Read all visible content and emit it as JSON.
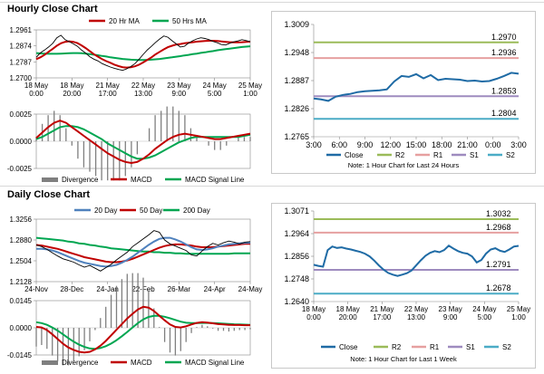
{
  "page": {
    "section1_title": "Hourly Close Chart",
    "section2_title": "Daily Close Chart"
  },
  "colors": {
    "price": "#000000",
    "ma_short": "#c00000",
    "ma_mid": "#4f81bd",
    "ma_long": "#00a651",
    "macd": "#c00000",
    "signal": "#00a651",
    "divergence": "#7f7f7f",
    "close_line": "#1f6ba5",
    "r2": "#9bbb59",
    "r1": "#e6a0a0",
    "s1": "#9e8bbf",
    "s2": "#4bacc6"
  },
  "chart_data": [
    {
      "id": "hourly_price",
      "type": "line",
      "legend": [
        "20 Hr MA",
        "50 Hrs MA"
      ],
      "yticks": [
        "1.2961",
        "1.2874",
        "1.2787",
        "1.2700"
      ],
      "ylim": [
        1.27,
        1.2961
      ],
      "xticks": [
        [
          "18 May",
          "0:00"
        ],
        [
          "18 May",
          "20:00"
        ],
        [
          "21 May",
          "17:00"
        ],
        [
          "22 May",
          "13:00"
        ],
        [
          "23 May",
          "9:00"
        ],
        [
          "24 May",
          "5:00"
        ],
        [
          "25 May",
          "1:00"
        ]
      ],
      "close": [
        1.2812,
        1.2836,
        1.2851,
        1.2868,
        1.2888,
        1.2918,
        1.2932,
        1.2908,
        1.2897,
        1.2885,
        1.2872,
        1.2851,
        1.2835,
        1.2815,
        1.2802,
        1.2792,
        1.2778,
        1.2768,
        1.2759,
        1.2752,
        1.2746,
        1.2741,
        1.2749,
        1.2762,
        1.2778,
        1.2802,
        1.2828,
        1.2852,
        1.2872,
        1.2893,
        1.2912,
        1.2928,
        1.2921,
        1.2902,
        1.2885,
        1.2868,
        1.2872,
        1.2889,
        1.2902,
        1.2912,
        1.2918,
        1.2914,
        1.2908,
        1.2898,
        1.2891,
        1.2881,
        1.2879,
        1.2888,
        1.2896,
        1.2901,
        1.2908,
        1.2903,
        1.2897
      ],
      "ma20": [
        1.2802,
        1.2812,
        1.2825,
        1.2842,
        1.2858,
        1.2875,
        1.2888,
        1.2896,
        1.2899,
        1.2896,
        1.2889,
        1.2877,
        1.2862,
        1.2846,
        1.2829,
        1.2815,
        1.2802,
        1.2791,
        1.2782,
        1.2772,
        1.2764,
        1.2758,
        1.2756,
        1.2758,
        1.2763,
        1.2772,
        1.2784,
        1.2798,
        1.2812,
        1.2828,
        1.2842,
        1.2855,
        1.2867,
        1.2875,
        1.2881,
        1.2884,
        1.2888,
        1.2891,
        1.2894,
        1.2897,
        1.2899,
        1.2901,
        1.2902,
        1.2902,
        1.2901,
        1.2898,
        1.2896,
        1.2894,
        1.2893,
        1.2893,
        1.2894,
        1.2896,
        1.2897
      ],
      "ma50": [
        1.2835,
        1.2833,
        1.2832,
        1.2831,
        1.2831,
        1.2831,
        1.2832,
        1.2833,
        1.2834,
        1.2835,
        1.2835,
        1.2834,
        1.2832,
        1.2829,
        1.2826,
        1.2823,
        1.2819,
        1.2816,
        1.2812,
        1.2809,
        1.2806,
        1.2803,
        1.2801,
        1.2799,
        1.2798,
        1.2797,
        1.2797,
        1.2798,
        1.2799,
        1.2801,
        1.2803,
        1.2806,
        1.2809,
        1.2812,
        1.2815,
        1.2818,
        1.2822,
        1.2825,
        1.2829,
        1.2832,
        1.2836,
        1.2839,
        1.2843,
        1.2846,
        1.285,
        1.2853,
        1.2856,
        1.2859,
        1.2862,
        1.2865,
        1.2868,
        1.287,
        1.2872
      ]
    },
    {
      "id": "hourly_macd",
      "type": "line",
      "legend": [
        "Divergence",
        "MACD",
        "MACD Signal Line"
      ],
      "yticks": [
        "0.0025",
        "0.0000",
        "-0.0025"
      ],
      "ylim": [
        -0.0025,
        0.0025
      ],
      "macd": [
        0.0003,
        0.0008,
        0.0013,
        0.0017,
        0.0019,
        0.0017,
        0.0013,
        0.0009,
        0.0005,
        0.0001,
        -0.0003,
        -0.0007,
        -0.0011,
        -0.0014,
        -0.0017,
        -0.0019,
        -0.002,
        -0.0019,
        -0.0016,
        -0.0012,
        -0.0007,
        -0.0003,
        0.0001,
        0.0004,
        0.0006,
        0.0007,
        0.0006,
        0.0005,
        0.0004,
        0.0003,
        0.0002,
        0.0002,
        0.0003,
        0.0004,
        0.0005,
        0.0006,
        0.0007
      ],
      "signal": [
        0.0002,
        0.0004,
        0.0007,
        0.001,
        0.0013,
        0.0014,
        0.0014,
        0.0013,
        0.0011,
        0.0008,
        0.0005,
        0.0002,
        -0.0002,
        -0.0005,
        -0.0008,
        -0.0011,
        -0.0014,
        -0.0016,
        -0.0016,
        -0.0015,
        -0.0013,
        -0.001,
        -0.0007,
        -0.0004,
        -0.0001,
        0.0001,
        0.0003,
        0.0004,
        0.0004,
        0.0004,
        0.0004,
        0.0004,
        0.0004,
        0.0004,
        0.0004,
        0.0005,
        0.0006
      ]
    },
    {
      "id": "hourly_pivots",
      "type": "line",
      "yticks": [
        "1.3009",
        "1.2948",
        "1.2887",
        "1.2826",
        "1.2765"
      ],
      "ylim": [
        1.2765,
        1.3009
      ],
      "xticks": [
        "3:00",
        "6:00",
        "9:00",
        "12:00",
        "15:00",
        "18:00",
        "21:00",
        "0:00",
        "3:00"
      ],
      "close": [
        1.2848,
        1.2846,
        1.2843,
        1.2852,
        1.2856,
        1.2858,
        1.2862,
        1.2864,
        1.2865,
        1.2866,
        1.2868,
        1.2885,
        1.2897,
        1.2895,
        1.2901,
        1.2892,
        1.2899,
        1.2888,
        1.2891,
        1.289,
        1.2889,
        1.2886,
        1.2887,
        1.2885,
        1.2886,
        1.2891,
        1.2897,
        1.2904,
        1.2902
      ],
      "levels": [
        {
          "name": "R2",
          "value": 1.297,
          "label": "1.2970"
        },
        {
          "name": "R1",
          "value": 1.2936,
          "label": "1.2936"
        },
        {
          "name": "S1",
          "value": 1.2853,
          "label": "1.2853"
        },
        {
          "name": "S2",
          "value": 1.2804,
          "label": "1.2804"
        }
      ],
      "legend": [
        "Close",
        "R2",
        "R1",
        "S1",
        "S2"
      ],
      "note": "Note: 1 Hour Chart for Last 24 Hours"
    },
    {
      "id": "daily_price",
      "type": "line",
      "legend": [
        "20 Day",
        "50 Day",
        "200 Day"
      ],
      "yticks": [
        "1.3256",
        "1.2880",
        "1.2504",
        "1.2128"
      ],
      "ylim": [
        1.2128,
        1.3256
      ],
      "xticks": [
        "24-Nov",
        "28-Dec",
        "24-Jan",
        "22-Feb",
        "26-Mar",
        "24-Apr",
        "24-May"
      ],
      "close": [
        1.279,
        1.276,
        1.271,
        1.265,
        1.259,
        1.254,
        1.251,
        1.248,
        1.243,
        1.239,
        1.242,
        1.237,
        1.232,
        1.238,
        1.244,
        1.252,
        1.259,
        1.266,
        1.276,
        1.283,
        1.29,
        1.297,
        1.305,
        1.302,
        1.288,
        1.281,
        1.277,
        1.273,
        1.269,
        1.261,
        1.259,
        1.268,
        1.276,
        1.282,
        1.279,
        1.283,
        1.286,
        1.284,
        1.281,
        1.284,
        1.285
      ],
      "ma20": [
        1.272,
        1.272,
        1.271,
        1.269,
        1.266,
        1.262,
        1.258,
        1.254,
        1.25,
        1.247,
        1.245,
        1.243,
        1.241,
        1.24,
        1.241,
        1.243,
        1.247,
        1.252,
        1.258,
        1.265,
        1.272,
        1.279,
        1.285,
        1.29,
        1.292,
        1.292,
        1.289,
        1.285,
        1.28,
        1.275,
        1.271,
        1.27,
        1.271,
        1.273,
        1.276,
        1.278,
        1.28,
        1.281,
        1.282,
        1.283,
        1.283
      ],
      "ma50": [
        1.279,
        1.278,
        1.276,
        1.274,
        1.272,
        1.269,
        1.266,
        1.263,
        1.26,
        1.257,
        1.255,
        1.253,
        1.251,
        1.249,
        1.248,
        1.248,
        1.249,
        1.251,
        1.254,
        1.258,
        1.262,
        1.266,
        1.27,
        1.274,
        1.277,
        1.279,
        1.28,
        1.28,
        1.279,
        1.278,
        1.276,
        1.275,
        1.275,
        1.275,
        1.276,
        1.277,
        1.278,
        1.279,
        1.28,
        1.281,
        1.281
      ],
      "ma200": [
        1.292,
        1.291,
        1.29,
        1.289,
        1.288,
        1.287,
        1.285,
        1.284,
        1.282,
        1.281,
        1.279,
        1.278,
        1.276,
        1.275,
        1.273,
        1.272,
        1.271,
        1.27,
        1.269,
        1.268,
        1.267,
        1.267,
        1.266,
        1.266,
        1.265,
        1.265,
        1.264,
        1.264,
        1.263,
        1.263,
        1.263,
        1.263,
        1.263,
        1.263,
        1.263,
        1.263,
        1.263,
        1.264,
        1.264,
        1.264,
        1.264
      ]
    },
    {
      "id": "daily_macd",
      "type": "line",
      "legend": [
        "Divergence",
        "MACD",
        "MACD Signal Line"
      ],
      "yticks": [
        "0.0145",
        "0.0000",
        "-0.0145"
      ],
      "ylim": [
        -0.0145,
        0.0145
      ],
      "macd": [
        0.0005,
        0.0002,
        -0.0012,
        -0.0035,
        -0.006,
        -0.0085,
        -0.0105,
        -0.0118,
        -0.0128,
        -0.0132,
        -0.0128,
        -0.0115,
        -0.0095,
        -0.007,
        -0.004,
        -0.001,
        0.002,
        0.005,
        0.0075,
        0.0098,
        0.0112,
        0.0108,
        0.009,
        0.0065,
        0.004,
        0.0018,
        0.0005,
        0.0002,
        0.0008,
        0.0018,
        0.0026,
        0.003,
        0.0028,
        0.0024,
        0.002,
        0.0018,
        0.0016,
        0.0015,
        0.0015,
        0.0014,
        0.0014
      ],
      "signal": [
        0.003,
        0.0025,
        0.0016,
        0.0002,
        -0.0015,
        -0.0035,
        -0.0055,
        -0.0074,
        -0.009,
        -0.0102,
        -0.011,
        -0.0112,
        -0.0108,
        -0.0098,
        -0.0084,
        -0.0066,
        -0.0045,
        -0.0022,
        0.0002,
        0.0025,
        0.0045,
        0.0058,
        0.0064,
        0.0064,
        0.0059,
        0.0051,
        0.0042,
        0.0033,
        0.0027,
        0.0025,
        0.0025,
        0.0026,
        0.0026,
        0.0025,
        0.0024,
        0.0022,
        0.0021,
        0.0019,
        0.0018,
        0.0017,
        0.0016
      ]
    },
    {
      "id": "daily_pivots",
      "type": "line",
      "yticks": [
        "1.3071",
        "1.2964",
        "1.2856",
        "1.2748",
        "1.2640"
      ],
      "ylim": [
        1.264,
        1.3071
      ],
      "xticks": [
        [
          "18 May",
          "0:00"
        ],
        [
          "18 May",
          "20:00"
        ],
        [
          "21 May",
          "17:00"
        ],
        [
          "22 May",
          "13:00"
        ],
        [
          "23 May",
          "9:00"
        ],
        [
          "24 May",
          "5:00"
        ],
        [
          "25 May",
          "1:00"
        ]
      ],
      "close": [
        1.2815,
        1.281,
        1.2806,
        1.2885,
        1.2902,
        1.2895,
        1.2898,
        1.2892,
        1.2888,
        1.2882,
        1.2876,
        1.2868,
        1.2855,
        1.2835,
        1.2812,
        1.2792,
        1.2776,
        1.2768,
        1.2762,
        1.2768,
        1.2775,
        1.2788,
        1.2812,
        1.2836,
        1.2858,
        1.2872,
        1.288,
        1.2875,
        1.2885,
        1.2906,
        1.2892,
        1.288,
        1.2872,
        1.2868,
        1.2855,
        1.2826,
        1.2838,
        1.2868,
        1.2888,
        1.2894,
        1.2882,
        1.2876,
        1.2888,
        1.2902,
        1.2905
      ],
      "levels": [
        {
          "name": "R2",
          "value": 1.3032,
          "label": "1.3032"
        },
        {
          "name": "R1",
          "value": 1.2968,
          "label": "1.2968"
        },
        {
          "name": "S1",
          "value": 1.2791,
          "label": "1.2791"
        },
        {
          "name": "S2",
          "value": 1.2678,
          "label": "1.2678"
        }
      ],
      "legend": [
        "Close",
        "R2",
        "R1",
        "S1",
        "S2"
      ],
      "note": "Note: 1 Hour Chart for Last 1 Week"
    }
  ]
}
